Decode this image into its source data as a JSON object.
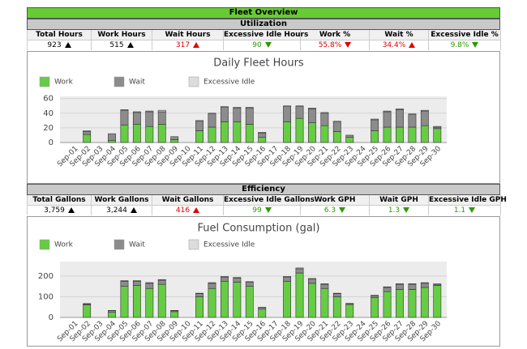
{
  "header": {
    "title": "Fleet Overview"
  },
  "sections": [
    {
      "title": "Utilization",
      "kpis": [
        {
          "label": "Total Hours",
          "value": "923",
          "arrow": "up",
          "color": "#000000"
        },
        {
          "label": "Work Hours",
          "value": "515",
          "arrow": "up",
          "color": "#000000"
        },
        {
          "label": "Wait Hours",
          "value": "317",
          "arrow": "up",
          "color": "#e00000"
        },
        {
          "label": "Excessive Idle Hours",
          "value": "90",
          "arrow": "down",
          "color": "#2e9a00"
        },
        {
          "label": "Work %",
          "value": "55.8%",
          "arrow": "down",
          "color": "#e00000"
        },
        {
          "label": "Wait %",
          "value": "34.4%",
          "arrow": "up",
          "color": "#e00000"
        },
        {
          "label": "Excessive Idle %",
          "value": "9.8%",
          "arrow": "down",
          "color": "#2e9a00"
        }
      ]
    },
    {
      "title": "Efficiency",
      "kpis": [
        {
          "label": "Total Gallons",
          "value": "3,759",
          "arrow": "up",
          "color": "#000000"
        },
        {
          "label": "Work Gallons",
          "value": "3,244",
          "arrow": "up",
          "color": "#000000"
        },
        {
          "label": "Wait Gallons",
          "value": "416",
          "arrow": "up",
          "color": "#e00000"
        },
        {
          "label": "Excessive Idle Gallons",
          "value": "99",
          "arrow": "down",
          "color": "#2e9a00"
        },
        {
          "label": "Work GPH",
          "value": "6.3",
          "arrow": "down",
          "color": "#2e9a00"
        },
        {
          "label": "Wait GPH",
          "value": "1.3",
          "arrow": "down",
          "color": "#2e9a00"
        },
        {
          "label": "Excessive Idle GPH",
          "value": "1.1",
          "arrow": "down",
          "color": "#2e9a00"
        }
      ]
    }
  ],
  "chart_data": [
    {
      "type": "bar",
      "stacked": true,
      "title": "Daily Fleet Hours",
      "legend": "top-left",
      "grid": true,
      "categories": [
        "Sep-01",
        "Sep-02",
        "Sep-03",
        "Sep-04",
        "Sep-05",
        "Sep-06",
        "Sep-07",
        "Sep-08",
        "Sep-09",
        "Sep-10",
        "Sep-11",
        "Sep-12",
        "Sep-13",
        "Sep-14",
        "Sep-15",
        "Sep-16",
        "Sep-17",
        "Sep-18",
        "Sep-19",
        "Sep-20",
        "Sep-21",
        "Sep-22",
        "Sep-23",
        "Sep-24",
        "Sep-25",
        "Sep-26",
        "Sep-27",
        "Sep-28",
        "Sep-29",
        "Sep-30"
      ],
      "series": [
        {
          "name": "Work",
          "color": "#66cc44",
          "values": [
            0,
            11,
            0,
            3,
            24,
            25,
            22,
            25,
            4,
            0,
            16,
            21,
            28,
            28,
            25,
            7,
            0,
            28,
            33,
            27,
            23,
            15,
            7,
            0,
            16,
            21,
            21,
            21,
            23,
            19
          ]
        },
        {
          "name": "Wait",
          "color": "#8c8c8c",
          "values": [
            0,
            4,
            0,
            9,
            20,
            16,
            20,
            17,
            4,
            0,
            13,
            18,
            20,
            19,
            22,
            6,
            0,
            21,
            16,
            19,
            17,
            13,
            3,
            0,
            15,
            21,
            24,
            17,
            20,
            2
          ]
        },
        {
          "name": "Excessive Idle",
          "color": "#dcdcdc",
          "values": [
            0,
            1,
            0,
            0,
            1,
            1,
            1,
            2,
            0,
            0,
            1,
            1,
            1,
            1,
            1,
            1,
            0,
            1,
            1,
            1,
            1,
            1,
            0,
            0,
            1,
            1,
            1,
            1,
            1,
            1
          ]
        }
      ],
      "ylim": [
        0,
        63
      ],
      "yticks": [
        0,
        20,
        40,
        60
      ]
    },
    {
      "type": "bar",
      "stacked": true,
      "title": "Fuel Consumption (gal)",
      "legend": "top-left",
      "grid": true,
      "categories": [
        "Sep-01",
        "Sep-02",
        "Sep-03",
        "Sep-04",
        "Sep-05",
        "Sep-06",
        "Sep-07",
        "Sep-08",
        "Sep-09",
        "Sep-10",
        "Sep-11",
        "Sep-12",
        "Sep-13",
        "Sep-14",
        "Sep-15",
        "Sep-16",
        "Sep-17",
        "Sep-18",
        "Sep-19",
        "Sep-20",
        "Sep-21",
        "Sep-22",
        "Sep-23",
        "Sep-24",
        "Sep-25",
        "Sep-26",
        "Sep-27",
        "Sep-28",
        "Sep-29",
        "Sep-30"
      ],
      "series": [
        {
          "name": "Work",
          "color": "#66cc44",
          "values": [
            0,
            60,
            0,
            25,
            150,
            155,
            140,
            160,
            28,
            0,
            100,
            140,
            175,
            170,
            150,
            40,
            0,
            175,
            215,
            165,
            140,
            100,
            62,
            0,
            95,
            125,
            135,
            135,
            145,
            155
          ]
        },
        {
          "name": "Wait",
          "color": "#8c8c8c",
          "values": [
            0,
            5,
            0,
            8,
            25,
            20,
            25,
            20,
            5,
            0,
            15,
            25,
            20,
            20,
            20,
            8,
            0,
            20,
            20,
            20,
            20,
            15,
            5,
            0,
            10,
            20,
            25,
            25,
            20,
            5
          ]
        },
        {
          "name": "Excessive Idle",
          "color": "#dcdcdc",
          "values": [
            0,
            2,
            0,
            1,
            3,
            3,
            3,
            3,
            1,
            0,
            2,
            3,
            3,
            3,
            3,
            1,
            0,
            3,
            4,
            3,
            3,
            2,
            1,
            0,
            2,
            3,
            3,
            3,
            3,
            2
          ]
        }
      ],
      "ylim": [
        0,
        270
      ],
      "yticks": [
        0,
        100,
        200
      ]
    }
  ]
}
